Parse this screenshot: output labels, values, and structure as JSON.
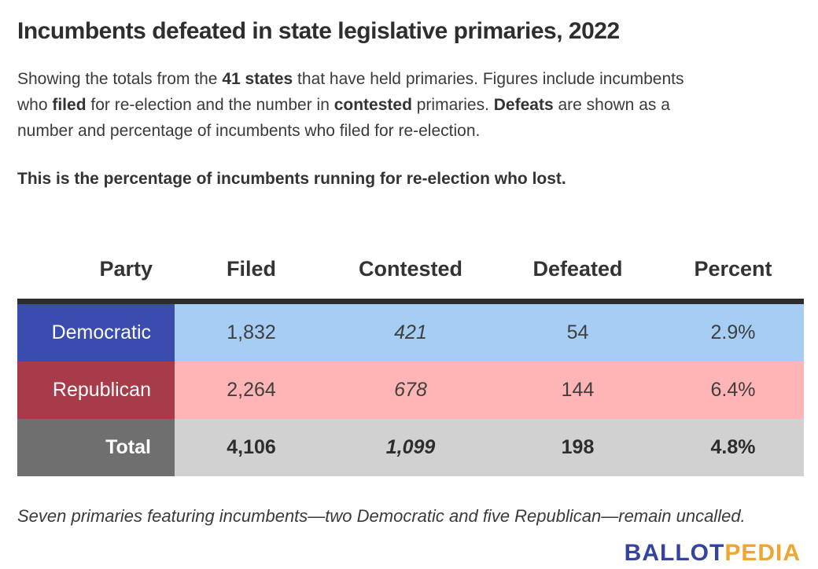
{
  "header": {
    "title": "Incumbents defeated in state legislative primaries, 2022"
  },
  "intro": {
    "lines": [
      {
        "segments": [
          {
            "text": "Showing the totals from the ",
            "bold": false
          },
          {
            "text": "41 states",
            "bold": true
          },
          {
            "text": " that have held primaries. Figures include incumbents",
            "bold": false
          }
        ]
      },
      {
        "segments": [
          {
            "text": "who ",
            "bold": false
          },
          {
            "text": "filed",
            "bold": true
          },
          {
            "text": " for re-election and the number in ",
            "bold": false
          },
          {
            "text": "contested",
            "bold": true
          },
          {
            "text": " primaries. ",
            "bold": false
          },
          {
            "text": "Defeats",
            "bold": true
          },
          {
            "text": " are shown as a",
            "bold": false
          }
        ]
      },
      {
        "segments": [
          {
            "text": "number and percentage of incumbents who filed for re-election.",
            "bold": false
          }
        ]
      }
    ],
    "emphasis": "This is the percentage of incumbents running for re-election who lost."
  },
  "chart_data": {
    "type": "table",
    "title": "Incumbents defeated in state legislative primaries, 2022",
    "columns": [
      "Party",
      "Filed",
      "Contested",
      "Defeated",
      "Percent"
    ],
    "rows": [
      {
        "party": "Democratic",
        "filed": "1,832",
        "contested": "421",
        "defeated": "54",
        "percent": "2.9%"
      },
      {
        "party": "Republican",
        "filed": "2,264",
        "contested": "678",
        "defeated": "144",
        "percent": "6.4%"
      },
      {
        "party": "Total",
        "filed": "4,106",
        "contested": "1,099",
        "defeated": "198",
        "percent": "4.8%"
      }
    ],
    "colors": {
      "democratic_label_bg": "#3a4cad",
      "democratic_row_bg": "#a6cdf3",
      "republican_label_bg": "#a83b4a",
      "republican_row_bg": "#ffb4b6",
      "total_label_bg": "#6f6f6f",
      "total_row_bg": "#d1d1d1",
      "table_top_border": "#2d2d2d"
    }
  },
  "footnote": "Seven primaries featuring incumbents—two Democratic and five Republican—remain uncalled.",
  "logo": {
    "ballot": "BALLOT",
    "pedia": "PEDIA",
    "ballot_color": "#33439f",
    "pedia_color": "#f0a432"
  }
}
